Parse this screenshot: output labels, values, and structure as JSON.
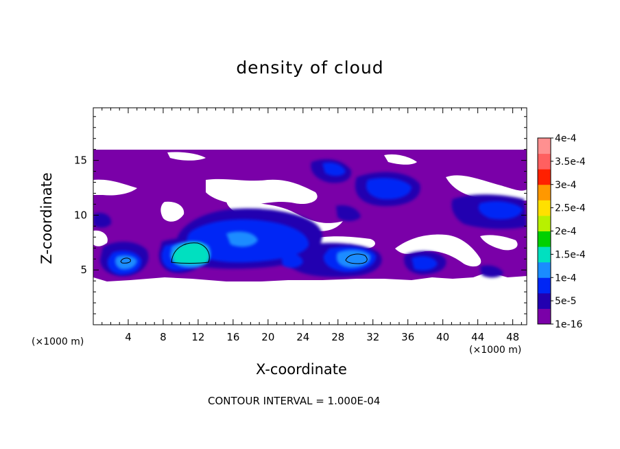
{
  "chart_data": {
    "type": "heatmap",
    "title": "density of cloud",
    "xlabel": "X-coordinate",
    "ylabel": "Z-coordinate",
    "x_unit": "(×1000 m)",
    "x_unit_right": "(×1000 m)",
    "xlim": [
      0,
      49.6
    ],
    "ylim": [
      0,
      19.8
    ],
    "x_ticks": [
      4,
      8,
      12,
      16,
      20,
      24,
      28,
      32,
      36,
      40,
      44,
      48
    ],
    "y_ticks": [
      5,
      10,
      15
    ],
    "colorbar": {
      "labels": [
        "4e-4",
        "3.5e-4",
        "3e-4",
        "2.5e-4",
        "2e-4",
        "1.5e-4",
        "1e-4",
        "5e-5",
        "1e-16"
      ],
      "levels": [
        1e-16,
        5e-05,
        0.0001,
        0.00015,
        0.0002,
        0.00025,
        0.0003,
        0.00035,
        0.0004
      ],
      "colors": [
        "#7a00a8",
        "#2200b0",
        "#0026f5",
        "#1a8cff",
        "#00e0c0",
        "#00d000",
        "#b8f000",
        "#ffe000",
        "#ff9800",
        "#ff2000",
        "#ff6060",
        "#ff9090"
      ]
    },
    "cloud_band_z": [
      4.2,
      16.0
    ],
    "max_region": {
      "x": [
        9,
        13.5
      ],
      "z": [
        6,
        7.5
      ],
      "value_range": "1.5e-4"
    },
    "contour_interval": "1.000E-04"
  },
  "footer": "CONTOUR INTERVAL = 1.000E-04"
}
